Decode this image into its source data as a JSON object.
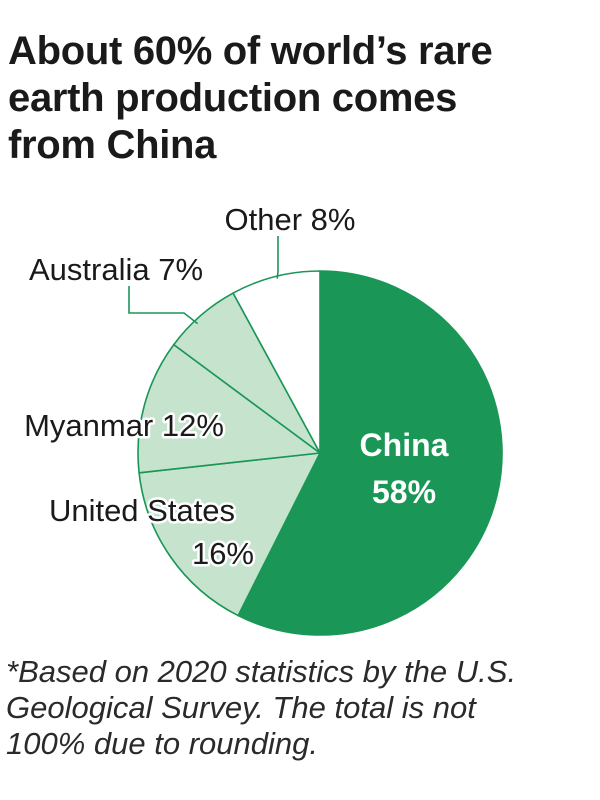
{
  "title_lines": [
    "About 60% of world’s rare",
    "earth production comes",
    "from China"
  ],
  "footnote_lines": [
    "*Based on 2020 statistics by the U.S.",
    "Geological Survey. The total is not",
    "100% due to rounding."
  ],
  "colors": {
    "china": "#1a9656",
    "others": "#c5e3cd",
    "other": "#ffffff",
    "outline": "#1a9656",
    "text": "#1a1a1a"
  },
  "chart_data": {
    "type": "pie",
    "title": "About 60% of world’s rare earth production comes from China",
    "unit": "%",
    "slices": [
      {
        "label": "China",
        "value": 58,
        "display": [
          "China",
          "58%"
        ]
      },
      {
        "label": "United States",
        "value": 16,
        "display": [
          "United States",
          "16%"
        ]
      },
      {
        "label": "Myanmar",
        "value": 12,
        "display": [
          "Myanmar 12%"
        ]
      },
      {
        "label": "Australia",
        "value": 7,
        "display": [
          "Australia 7%"
        ]
      },
      {
        "label": "Other",
        "value": 8,
        "display": [
          "Other 8%"
        ]
      }
    ]
  }
}
